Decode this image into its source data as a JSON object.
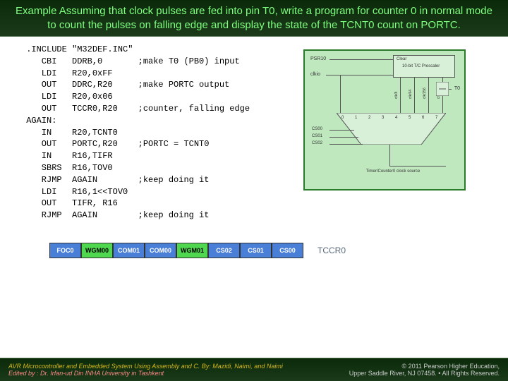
{
  "header": {
    "text": "Example Assuming that clock pulses are fed into pin T0, write a program for counter 0 in normal mode to count the pulses on falling edge and display the state of the TCNT0 count on PORTC."
  },
  "code": {
    "lines": [
      " .INCLUDE \"M32DEF.INC\"",
      "    CBI   DDRB,0       ;make T0 (PB0) input",
      "    LDI   R20,0xFF",
      "    OUT   DDRC,R20     ;make PORTC output",
      "    LDI   R20,0x06",
      "    OUT   TCCR0,R20    ;counter, falling edge",
      " AGAIN:",
      "    IN    R20,TCNT0",
      "    OUT   PORTC,R20    ;PORTC = TCNT0",
      "    IN    R16,TIFR",
      "    SBRS  R16,TOV0",
      "    RJMP  AGAIN        ;keep doing it",
      "    LDI   R16,1<<TOV0",
      "    OUT   TIFR, R16",
      "    RJMP  AGAIN        ;keep doing it"
    ]
  },
  "diagram": {
    "psr10_label": "PSR10",
    "clkio_label": "clkio",
    "t0_label": "T0",
    "prescaler_label": "10-bit T/C Prescaler",
    "clear_label": "Clear",
    "div_labels": [
      "clk/8",
      "clk/64",
      "clk/256",
      "clk/1024"
    ],
    "mux_inputs": [
      "0",
      "1",
      "2",
      "3",
      "4",
      "5",
      "6",
      "7"
    ],
    "cs_labels": [
      "CS00",
      "CS01",
      "CS02"
    ],
    "out_label": "Timer/Counter0 clock source",
    "colors": {
      "border": "#2a7a2a",
      "bg": "#bfe8bf",
      "box_bg": "#d8f0d8"
    }
  },
  "register": {
    "label": "TCCR0",
    "cells": [
      {
        "name": "FOC0",
        "style": "blue"
      },
      {
        "name": "WGM00",
        "style": "green"
      },
      {
        "name": "COM01",
        "style": "blue"
      },
      {
        "name": "COM00",
        "style": "blue"
      },
      {
        "name": "WGM01",
        "style": "green"
      },
      {
        "name": "CS02",
        "style": "blue"
      },
      {
        "name": "CS01",
        "style": "blue"
      },
      {
        "name": "CS00",
        "style": "blue"
      }
    ],
    "colors": {
      "blue": "#4a7fd8",
      "green": "#4fd84f"
    }
  },
  "footer": {
    "book": "AVR Microcontroller and Embedded System Using Assembly and C.",
    "authors": " By: Mazidi, Naimi, and Naimi",
    "editor": "Edited by : Dr. Irfan-ud Din INHA University in Tashkent",
    "copyright_line1": "© 2011   Pearson Higher Education,",
    "copyright_line2": "Upper Saddle River, NJ 07458. • All Rights Reserved."
  }
}
